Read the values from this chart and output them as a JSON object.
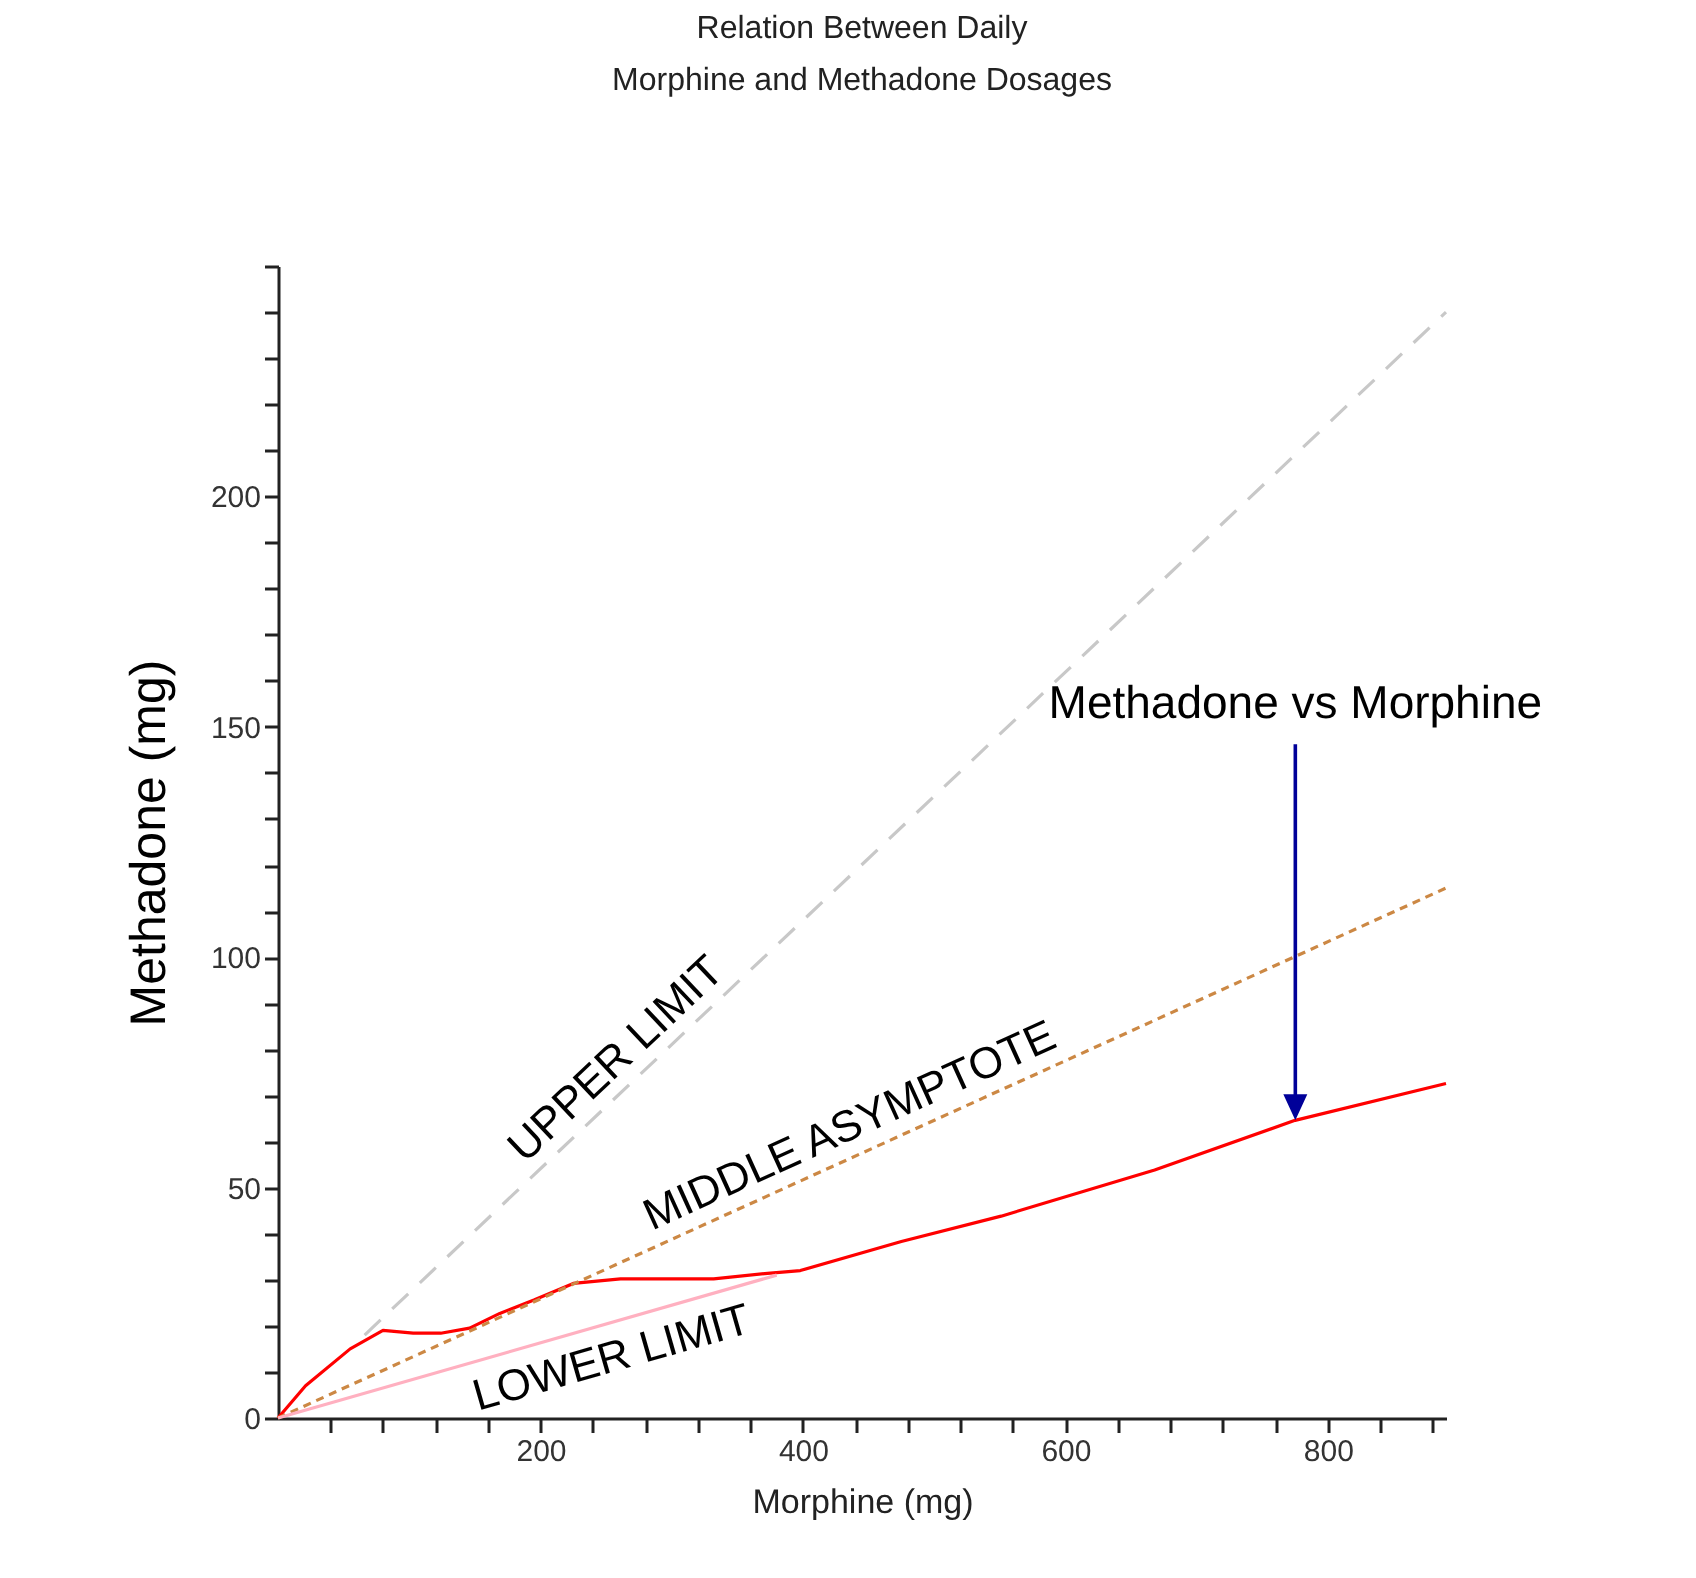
{
  "chart_data": {
    "type": "line",
    "title": "Relation Between Daily\nMorphine and Methadone Dosages",
    "xlabel": "Morphine (mg)",
    "ylabel": "Methadone (mg)",
    "xlim": [
      0,
      890
    ],
    "ylim": [
      0,
      250
    ],
    "xticks": [
      {
        "value": 40,
        "label": null
      },
      {
        "value": 80,
        "label": null
      },
      {
        "value": 120,
        "label": null
      },
      {
        "value": 160,
        "label": null
      },
      200,
      {
        "value": 240,
        "label": null
      },
      {
        "value": 280,
        "label": null
      },
      {
        "value": 320,
        "label": null
      },
      {
        "value": 360,
        "label": null
      },
      400,
      {
        "value": 440,
        "label": null
      },
      {
        "value": 480,
        "label": null
      },
      {
        "value": 520,
        "label": null
      },
      {
        "value": 560,
        "label": null
      },
      600,
      {
        "value": 640,
        "label": null
      },
      {
        "value": 680,
        "label": null
      },
      {
        "value": 720,
        "label": null
      },
      {
        "value": 760,
        "label": null
      },
      800,
      {
        "value": 840,
        "label": null
      },
      {
        "value": 880,
        "label": null
      }
    ],
    "yticks": [
      0,
      {
        "value": 10,
        "label": null
      },
      {
        "value": 20,
        "label": null
      },
      {
        "value": 30,
        "label": null
      },
      {
        "value": 40,
        "label": null
      },
      50,
      {
        "value": 60,
        "label": null
      },
      {
        "value": 70,
        "label": null
      },
      {
        "value": 80,
        "label": null
      },
      {
        "value": 90,
        "label": null
      },
      100,
      {
        "value": 110,
        "label": null
      },
      {
        "value": 120,
        "label": null
      },
      {
        "value": 130,
        "label": null
      },
      {
        "value": 140,
        "label": null
      },
      150,
      {
        "value": 160,
        "label": null
      },
      {
        "value": 170,
        "label": null
      },
      {
        "value": 180,
        "label": null
      },
      {
        "value": 190,
        "label": null
      },
      200,
      {
        "value": 210,
        "label": null
      },
      {
        "value": 220,
        "label": null
      },
      {
        "value": 230,
        "label": null
      },
      {
        "value": 240,
        "label": null
      },
      {
        "value": 250,
        "label": null
      }
    ],
    "grid": false,
    "marker": "none",
    "series": [
      {
        "color": "#ff0000",
        "line_style": "solid",
        "x": [
          0,
          21,
          55,
          80,
          103,
          124,
          146,
          169,
          195,
          225,
          261,
          332,
          373,
          398,
          475,
          551,
          668,
          775,
          890
        ],
        "values": [
          0,
          7,
          15,
          19,
          18.4,
          18.4,
          19.5,
          22.7,
          25.6,
          29.2,
          30.2,
          30.2,
          31.4,
          32,
          38.3,
          43.8,
          53.8,
          64.6,
          72.6
        ]
      },
      {
        "name": "UPPER LIMIT",
        "color": "#c8c8c8",
        "line_style": "dashed",
        "x": [
          66,
          890
        ],
        "values": [
          18,
          240
        ]
      },
      {
        "name": "MIDDLE ASYMPTOTE",
        "color": "#cc8844",
        "line_style": "dotted",
        "x": [
          0,
          890
        ],
        "values": [
          0,
          115
        ]
      },
      {
        "name": "LOWER LIMIT",
        "color": "#ffb0c0",
        "line_style": "solid",
        "x": [
          0,
          380
        ],
        "values": [
          0,
          31
        ]
      }
    ],
    "annotations": [
      "Methadone vs Morphine"
    ]
  }
}
